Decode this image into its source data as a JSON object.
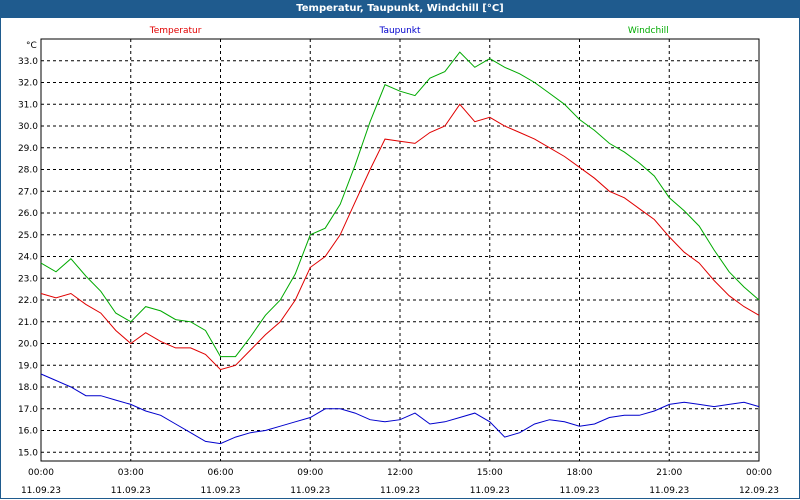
{
  "window": {
    "title": "Temperatur, Taupunkt, Windchill [°C]"
  },
  "chart_data": {
    "type": "line",
    "title": "Temperatur, Taupunkt, Windchill [°C]",
    "ylabel": "°C",
    "ylim": [
      14.6,
      34.0
    ],
    "yticks": [
      "15.0",
      "16.0",
      "17.0",
      "18.0",
      "19.0",
      "20.0",
      "21.0",
      "22.0",
      "23.0",
      "24.0",
      "25.0",
      "26.0",
      "27.0",
      "28.0",
      "29.0",
      "30.0",
      "31.0",
      "32.0",
      "33.0"
    ],
    "xlim": [
      0,
      24
    ],
    "xticks": [
      {
        "x": 0,
        "time": "00:00",
        "date": "11.09.23"
      },
      {
        "x": 3,
        "time": "03:00",
        "date": "11.09.23"
      },
      {
        "x": 6,
        "time": "06:00",
        "date": "11.09.23"
      },
      {
        "x": 9,
        "time": "09:00",
        "date": "11.09.23"
      },
      {
        "x": 12,
        "time": "12:00",
        "date": "11.09.23"
      },
      {
        "x": 15,
        "time": "15:00",
        "date": "11.09.23"
      },
      {
        "x": 18,
        "time": "18:00",
        "date": "11.09.23"
      },
      {
        "x": 21,
        "time": "21:00",
        "date": "11.09.23"
      },
      {
        "x": 24,
        "time": "00:00",
        "date": "12.09.23"
      }
    ],
    "grid": true,
    "series": [
      {
        "name": "Temperatur",
        "color": "#e00000",
        "x": [
          0,
          0.5,
          1,
          1.5,
          2,
          2.5,
          3,
          3.5,
          4,
          4.5,
          5,
          5.5,
          6,
          6.5,
          7,
          7.5,
          8,
          8.5,
          9,
          9.5,
          10,
          10.5,
          11,
          11.5,
          12,
          12.5,
          13,
          13.5,
          14,
          14.5,
          15,
          15.5,
          16,
          16.5,
          17,
          17.5,
          18,
          18.5,
          19,
          19.5,
          20,
          20.5,
          21,
          21.5,
          22,
          22.5,
          23,
          23.5,
          24
        ],
        "values": [
          22.3,
          22.1,
          22.3,
          21.8,
          21.4,
          20.6,
          20.0,
          20.5,
          20.1,
          19.8,
          19.8,
          19.5,
          18.8,
          19.0,
          19.7,
          20.4,
          21.0,
          22.0,
          23.5,
          24.0,
          25.0,
          26.5,
          28.0,
          29.4,
          29.3,
          29.2,
          29.7,
          30.0,
          31.0,
          30.2,
          30.4,
          30.0,
          29.7,
          29.4,
          29.0,
          28.6,
          28.1,
          27.6,
          27.0,
          26.7,
          26.2,
          25.7,
          24.9,
          24.2,
          23.7,
          22.9,
          22.2,
          21.7,
          21.3
        ]
      },
      {
        "name": "Taupunkt",
        "color": "#0000cc",
        "x": [
          0,
          0.5,
          1,
          1.5,
          2,
          2.5,
          3,
          3.5,
          4,
          4.5,
          5,
          5.5,
          6,
          6.5,
          7,
          7.5,
          8,
          8.5,
          9,
          9.5,
          10,
          10.5,
          11,
          11.5,
          12,
          12.5,
          13,
          13.5,
          14,
          14.5,
          15,
          15.5,
          16,
          16.5,
          17,
          17.5,
          18,
          18.5,
          19,
          19.5,
          20,
          20.5,
          21,
          21.5,
          22,
          22.5,
          23,
          23.5,
          24
        ],
        "values": [
          18.6,
          18.3,
          18.0,
          17.6,
          17.6,
          17.4,
          17.2,
          16.9,
          16.7,
          16.3,
          15.9,
          15.5,
          15.4,
          15.7,
          15.9,
          16.0,
          16.2,
          16.4,
          16.6,
          17.0,
          17.0,
          16.8,
          16.5,
          16.4,
          16.5,
          16.8,
          16.3,
          16.4,
          16.6,
          16.8,
          16.4,
          15.7,
          15.9,
          16.3,
          16.5,
          16.4,
          16.2,
          16.3,
          16.6,
          16.7,
          16.7,
          16.9,
          17.2,
          17.3,
          17.2,
          17.1,
          17.2,
          17.3,
          17.1
        ]
      },
      {
        "name": "Windchill",
        "color": "#00aa00",
        "x": [
          0,
          0.5,
          1,
          1.5,
          2,
          2.5,
          3,
          3.5,
          4,
          4.5,
          5,
          5.5,
          6,
          6.5,
          7,
          7.5,
          8,
          8.5,
          9,
          9.5,
          10,
          10.5,
          11,
          11.5,
          12,
          12.5,
          13,
          13.5,
          14,
          14.5,
          15,
          15.5,
          16,
          16.5,
          17,
          17.5,
          18,
          18.5,
          19,
          19.5,
          20,
          20.5,
          21,
          21.5,
          22,
          22.5,
          23,
          23.5,
          24
        ],
        "values": [
          23.7,
          23.3,
          23.9,
          23.1,
          22.4,
          21.4,
          21.0,
          21.7,
          21.5,
          21.1,
          21.0,
          20.6,
          19.4,
          19.4,
          20.3,
          21.3,
          22.0,
          23.2,
          25.0,
          25.3,
          26.4,
          28.2,
          30.2,
          31.9,
          31.6,
          31.4,
          32.2,
          32.5,
          33.4,
          32.7,
          33.1,
          32.7,
          32.4,
          32.0,
          31.5,
          31.0,
          30.3,
          29.8,
          29.2,
          28.8,
          28.3,
          27.7,
          26.7,
          26.1,
          25.4,
          24.3,
          23.3,
          22.6,
          22.0
        ]
      }
    ]
  }
}
